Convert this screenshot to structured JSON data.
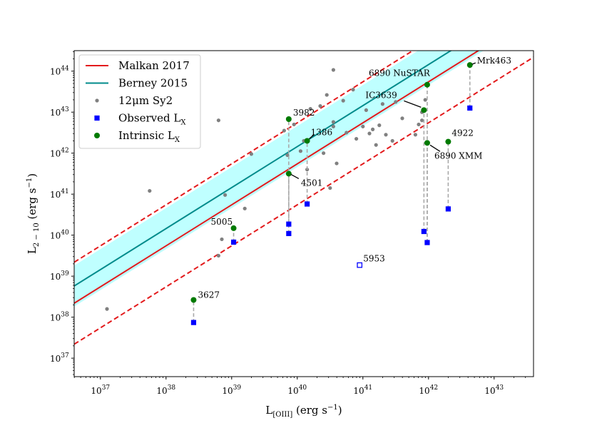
{
  "chart_data": {
    "type": "scatter",
    "xscale": "log",
    "yscale": "log",
    "xlim_log10": [
      36.6,
      43.6
    ],
    "ylim_log10": [
      36.55,
      44.5
    ],
    "xlabel_main": "L",
    "xlabel_sub": "[OIII]",
    "xlabel_units": "(erg s",
    "ylabel_main": "L",
    "ylabel_sub": "2 − 10",
    "ylabel_units": "(erg s",
    "units_exp": "−1",
    "units_close": ")",
    "xticks": [
      {
        "base": "10",
        "exp": "37",
        "value": 37
      },
      {
        "base": "10",
        "exp": "38",
        "value": 38
      },
      {
        "base": "10",
        "exp": "39",
        "value": 39
      },
      {
        "base": "10",
        "exp": "40",
        "value": 40
      },
      {
        "base": "10",
        "exp": "41",
        "value": 41
      },
      {
        "base": "10",
        "exp": "42",
        "value": 42
      },
      {
        "base": "10",
        "exp": "43",
        "value": 43
      }
    ],
    "yticks": [
      {
        "base": "10",
        "exp": "37",
        "value": 37
      },
      {
        "base": "10",
        "exp": "38",
        "value": 38
      },
      {
        "base": "10",
        "exp": "39",
        "value": 39
      },
      {
        "base": "10",
        "exp": "40",
        "value": 40
      },
      {
        "base": "10",
        "exp": "41",
        "value": 41
      },
      {
        "base": "10",
        "exp": "42",
        "value": 42
      },
      {
        "base": "10",
        "exp": "43",
        "value": 43
      },
      {
        "base": "10",
        "exp": "44",
        "value": 44
      }
    ],
    "legend": {
      "placement": "top-left",
      "entries": [
        {
          "label": "Malkan 2017",
          "marker": "line",
          "color": "#e31a1c"
        },
        {
          "label": "Berney 2015",
          "marker": "line",
          "color": "#008b8b"
        },
        {
          "label": "12μm Sy2",
          "marker": "small-circle",
          "color": "#808080"
        },
        {
          "label": "Observed L",
          "sub": "X",
          "marker": "square",
          "color": "#0000ff"
        },
        {
          "label": "Intrinsic L",
          "sub": "X",
          "marker": "circle",
          "color": "#007a00"
        }
      ]
    },
    "relations": {
      "malkan": {
        "slope": 1.0,
        "intercept": 1.74,
        "offset_dex": 1.0,
        "color": "#e31a1c"
      },
      "berney": {
        "slope": 1.0,
        "intercept": 2.16,
        "scatter_dex": 0.5,
        "color": "#008b8b",
        "band_color": "#7fffff"
      }
    },
    "series": [
      {
        "name": "12μm Sy2",
        "color": "#808080",
        "points": [
          [
            37.1,
            38.2
          ],
          [
            37.75,
            41.08
          ],
          [
            38.8,
            42.8
          ],
          [
            38.8,
            39.5
          ],
          [
            38.85,
            39.9
          ],
          [
            38.9,
            40.98
          ],
          [
            39.2,
            40.65
          ],
          [
            39.3,
            41.98
          ],
          [
            39.8,
            42.55
          ],
          [
            39.85,
            41.95
          ],
          [
            39.95,
            42.7
          ],
          [
            40.05,
            42.05
          ],
          [
            40.1,
            42.3
          ],
          [
            40.15,
            41.6
          ],
          [
            40.2,
            43.08
          ],
          [
            40.35,
            43.15
          ],
          [
            40.4,
            42.0
          ],
          [
            40.45,
            43.42
          ],
          [
            40.5,
            41.15
          ],
          [
            40.55,
            44.03
          ],
          [
            40.55,
            42.65
          ],
          [
            40.55,
            42.76
          ],
          [
            40.6,
            41.75
          ],
          [
            40.7,
            43.28
          ],
          [
            40.75,
            42.5
          ],
          [
            40.85,
            43.55
          ],
          [
            40.9,
            42.35
          ],
          [
            41.0,
            42.65
          ],
          [
            41.05,
            43.05
          ],
          [
            41.1,
            42.48
          ],
          [
            41.15,
            42.58
          ],
          [
            41.2,
            42.2
          ],
          [
            41.25,
            42.68
          ],
          [
            41.3,
            43.2
          ],
          [
            41.35,
            42.45
          ],
          [
            41.45,
            42.3
          ],
          [
            41.5,
            43.25
          ],
          [
            41.6,
            42.85
          ],
          [
            41.8,
            42.45
          ],
          [
            41.85,
            42.7
          ],
          [
            41.9,
            43.0
          ],
          [
            41.9,
            42.8
          ],
          [
            41.95,
            43.3
          ]
        ]
      },
      {
        "name": "Observed L_X",
        "color": "#0000ff",
        "points": [
          [
            39.03,
            39.83
          ],
          [
            38.42,
            37.87
          ],
          [
            39.87,
            40.04
          ],
          [
            39.87,
            40.27
          ],
          [
            40.15,
            40.76
          ],
          [
            41.93,
            40.09
          ],
          [
            41.98,
            39.82
          ],
          [
            42.3,
            40.64
          ],
          [
            42.63,
            43.1
          ]
        ]
      },
      {
        "name": "Intrinsic L_X",
        "color": "#007a00",
        "points": [
          [
            39.03,
            40.17
          ],
          [
            38.42,
            38.42
          ],
          [
            39.87,
            42.83
          ],
          [
            39.87,
            41.5
          ],
          [
            40.15,
            42.3
          ],
          [
            41.93,
            43.05
          ],
          [
            41.98,
            42.25
          ],
          [
            41.98,
            43.67
          ],
          [
            42.3,
            42.28
          ],
          [
            42.63,
            44.15
          ]
        ]
      },
      {
        "name": "5953",
        "color": "#0000ff",
        "marker": "open-square",
        "points": [
          [
            40.95,
            39.27
          ]
        ]
      }
    ],
    "annotations": [
      {
        "text": "5005",
        "x": 39.03,
        "y": 40.17
      },
      {
        "text": "3627",
        "x": 38.42,
        "y": 38.42
      },
      {
        "text": "3982",
        "x": 39.87,
        "y": 42.83
      },
      {
        "text": "4501",
        "x": 39.87,
        "y": 41.5
      },
      {
        "text": "1386",
        "x": 40.15,
        "y": 42.3
      },
      {
        "text": "5953",
        "x": 40.95,
        "y": 39.27
      },
      {
        "text": "IC3639",
        "x": 41.93,
        "y": 43.05
      },
      {
        "text": "6890 NuSTAR",
        "x": 41.98,
        "y": 43.67
      },
      {
        "text": "6890 XMM",
        "x": 41.98,
        "y": 42.25
      },
      {
        "text": "4922",
        "x": 42.3,
        "y": 42.28
      },
      {
        "text": "Mrk463",
        "x": 42.63,
        "y": 44.15
      }
    ]
  }
}
